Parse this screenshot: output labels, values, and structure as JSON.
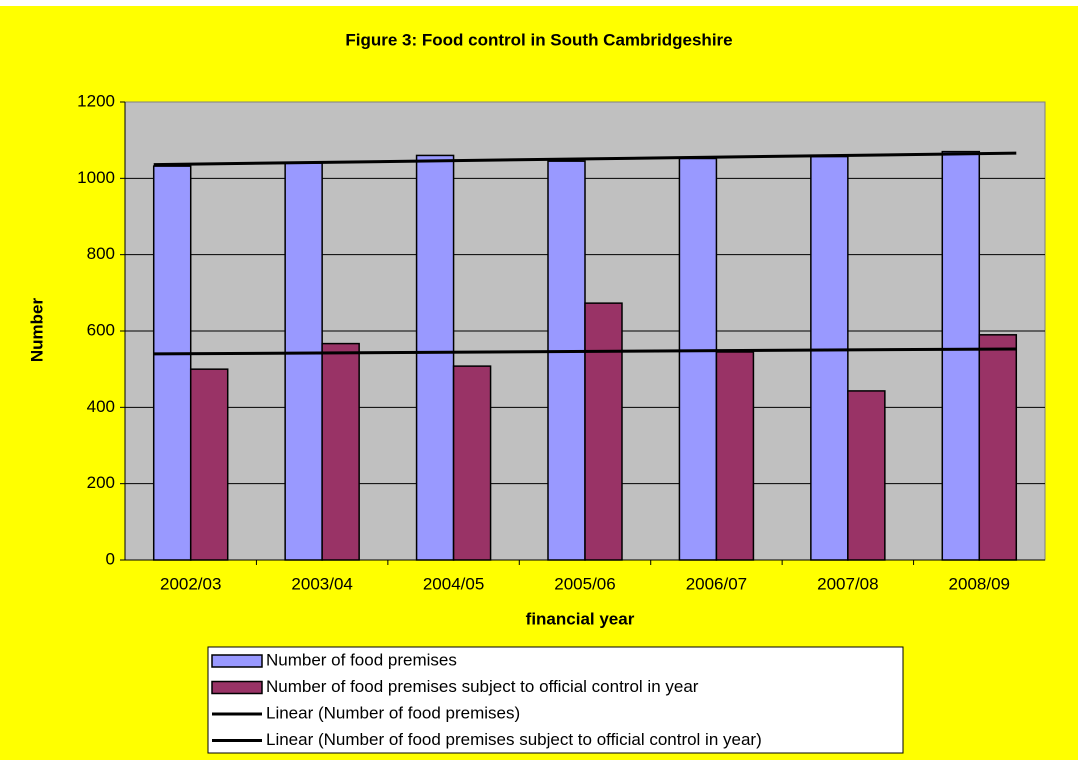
{
  "chart_data": {
    "type": "bar",
    "title": "Figure 3: Food control in South Cambridgeshire",
    "x_label": "financial year",
    "y_label": "Number",
    "categories": [
      "2002/03",
      "2003/04",
      "2004/05",
      "2005/06",
      "2006/07",
      "2007/08",
      "2008/09"
    ],
    "series": [
      {
        "name": "Number of food premises",
        "color": "#9999ff",
        "values": [
          1032,
          1040,
          1060,
          1045,
          1052,
          1057,
          1070
        ]
      },
      {
        "name": "Number of food premises subject to official control in year",
        "color": "#993366",
        "values": [
          500,
          567,
          508,
          673,
          545,
          443,
          590
        ]
      }
    ],
    "trendlines": [
      {
        "name": "Linear (Number of food premises)",
        "color": "#000000",
        "values": [
          1036,
          1066
        ]
      },
      {
        "name": "Linear (Number of food premises subject to official control in year)",
        "color": "#000000",
        "values": [
          540,
          553
        ]
      }
    ],
    "ylim": [
      0,
      1200
    ],
    "yticks": [
      0,
      200,
      400,
      600,
      800,
      1000,
      1200
    ],
    "grid": true
  }
}
